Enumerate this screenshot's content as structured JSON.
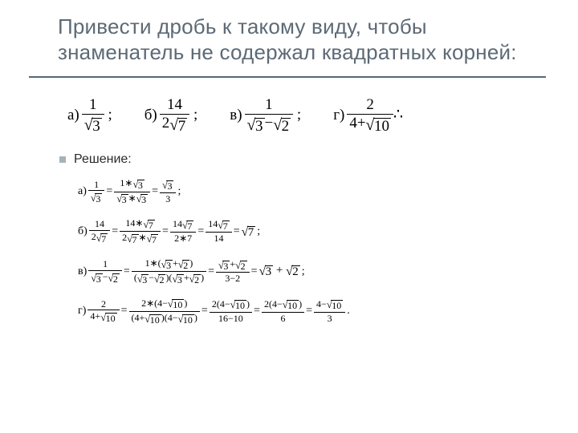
{
  "title": "Привести дробь к такому виду, чтобы знаменатель не содержал квадратных корней:",
  "bullet_label": "Решение:",
  "problems": {
    "a": {
      "label": "а)",
      "num": "1",
      "den_sqrt": "3"
    },
    "b": {
      "label": "б)",
      "num": "14",
      "den_coeff": "2",
      "den_sqrt": "7"
    },
    "c": {
      "label": "в)",
      "num": "1",
      "den_a_sqrt": "3",
      "den_b_sqrt": "2"
    },
    "d": {
      "label": "г)",
      "num": "2",
      "den_const": "4",
      "den_sqrt": "10"
    }
  },
  "solutions": {
    "a": {
      "label": "а)",
      "step1_num": "1",
      "step1_den_sqrt": "3",
      "step2_num_coeff": "1",
      "step2_num_sqrt": "3",
      "step2_den_a_sqrt": "3",
      "step2_den_b_sqrt": "3",
      "step3_num_sqrt": "3",
      "step3_den": "3"
    },
    "b": {
      "label": "б)",
      "step1_num": "14",
      "step1_den_coeff": "2",
      "step1_den_sqrt": "7",
      "step2_num_coeff": "14",
      "step2_num_sqrt": "7",
      "step2_den_coeff": "2",
      "step2_den_a_sqrt": "7",
      "step2_den_b_sqrt": "7",
      "step3_num_coeff": "14",
      "step3_num_sqrt": "7",
      "step3_den": "2∗7",
      "step4_num_coeff": "14",
      "step4_num_sqrt": "7",
      "step4_den": "14",
      "result_sqrt": "7"
    },
    "c": {
      "label": "в)",
      "step1_num": "1",
      "step1_den_a_sqrt": "3",
      "step1_den_b_sqrt": "2",
      "step2_num_coeff": "1",
      "step2_num_a_sqrt": "3",
      "step2_num_b_sqrt": "2",
      "step2_den_a1_sqrt": "3",
      "step2_den_a2_sqrt": "2",
      "step2_den_b1_sqrt": "3",
      "step2_den_b2_sqrt": "2",
      "step3_num_a_sqrt": "3",
      "step3_num_b_sqrt": "2",
      "step3_den": "3−2",
      "result_a_sqrt": "3",
      "result_b_sqrt": "2"
    },
    "d": {
      "label": "г)",
      "step1_num": "2",
      "step1_den_const": "4",
      "step1_den_sqrt": "10",
      "step2_num_coeff": "2",
      "step2_num_const": "4",
      "step2_num_sqrt": "10",
      "step2_den_a_const": "4",
      "step2_den_a_sqrt": "10",
      "step2_den_b_const": "4",
      "step2_den_b_sqrt": "10",
      "step3_num_coeff": "2",
      "step3_num_const": "4",
      "step3_num_sqrt": "10",
      "step3_den": "16−10",
      "step4_num_coeff": "2",
      "step4_num_const": "4",
      "step4_num_sqrt": "10",
      "step4_den": "6",
      "result_num_const": "4",
      "result_num_sqrt": "10",
      "result_den": "3"
    }
  },
  "colors": {
    "title": "#5d6a76",
    "rule": "#556677",
    "bullet": "#a4b3b9",
    "text": "#000000",
    "background": "#ffffff"
  }
}
